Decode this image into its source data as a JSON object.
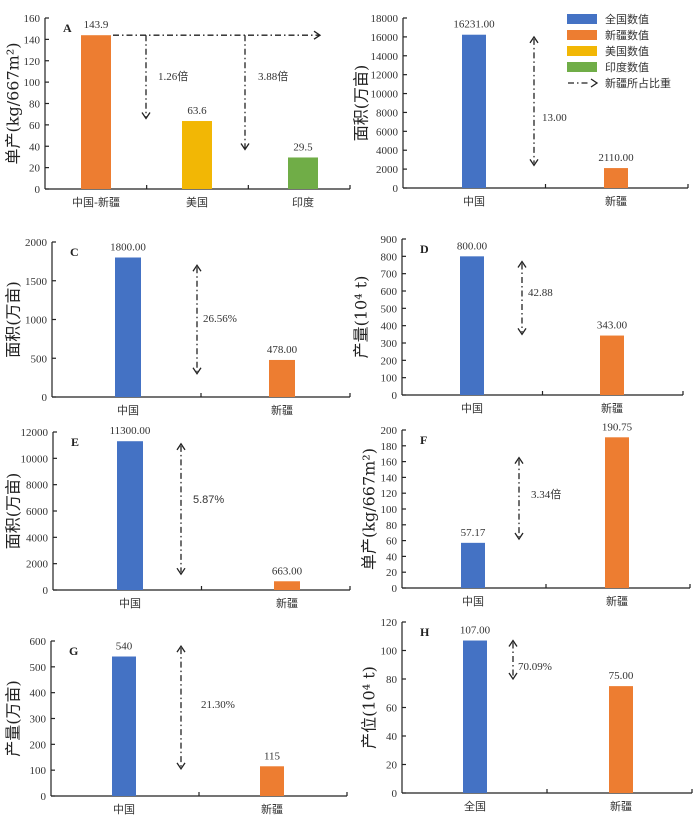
{
  "colors": {
    "national": "#4472C4",
    "xinjiang": "#ED7D31",
    "usa": "#F2B705",
    "india": "#70AD47"
  },
  "legend": {
    "items": [
      {
        "label": "全国数值",
        "color_key": "national",
        "kind": "patch"
      },
      {
        "label": "新疆数值",
        "color_key": "xinjiang",
        "kind": "patch"
      },
      {
        "label": "美国数值",
        "color_key": "usa",
        "kind": "patch"
      },
      {
        "label": "印度数值",
        "color_key": "india",
        "kind": "patch"
      },
      {
        "label": "新疆所占比重",
        "kind": "dash-dot-arrow"
      }
    ]
  },
  "chart_data": [
    {
      "id": "A",
      "type": "bar",
      "panel_label": "A",
      "ylabel": "单产(kg/667m²)",
      "ylim": [
        0,
        160
      ],
      "yticks": [
        0,
        20,
        40,
        60,
        80,
        100,
        120,
        140,
        160
      ],
      "categories": [
        "中国-新疆",
        "美国",
        "印度"
      ],
      "values": [
        143.9,
        63.6,
        29.5
      ],
      "value_labels": [
        "143.9",
        "63.6",
        "29.5"
      ],
      "bar_colors": [
        "xinjiang",
        "usa",
        "india"
      ],
      "annotations": [
        {
          "text": "1.26倍",
          "from": 143.9,
          "to": 63.6
        },
        {
          "text": "3.88倍",
          "from": 143.9,
          "to": 29.5
        }
      ]
    },
    {
      "id": "B",
      "type": "bar",
      "panel_label": "",
      "ylabel": "面积(万亩)",
      "ylim": [
        0,
        18000
      ],
      "yticks": [
        0,
        2000,
        4000,
        6000,
        8000,
        10000,
        12000,
        14000,
        16000,
        18000
      ],
      "categories": [
        "中国",
        "新疆"
      ],
      "values": [
        16231.0,
        2110.0
      ],
      "value_labels": [
        "16231.00",
        "2110.00"
      ],
      "bar_colors": [
        "national",
        "xinjiang"
      ],
      "annotations": [
        {
          "text": "13.00",
          "from": 16231.0,
          "to": 2110.0
        }
      ]
    },
    {
      "id": "C",
      "type": "bar",
      "panel_label": "C",
      "ylabel": "面积(万亩)",
      "ylim": [
        0,
        2000
      ],
      "yticks": [
        0,
        500,
        1000,
        1500,
        2000
      ],
      "categories": [
        "中国",
        "新疆"
      ],
      "values": [
        1800.0,
        478.0
      ],
      "value_labels": [
        "1800.00",
        "478.00"
      ],
      "bar_colors": [
        "national",
        "xinjiang"
      ],
      "annotations": [
        {
          "text": "26.56%",
          "from": 1800.0,
          "to": 478.0
        }
      ]
    },
    {
      "id": "D",
      "type": "bar",
      "panel_label": "D",
      "ylabel": "产量(10⁴ t)",
      "ylim": [
        0,
        900
      ],
      "yticks": [
        0,
        100,
        200,
        300,
        400,
        500,
        600,
        700,
        800,
        900
      ],
      "categories": [
        "中国",
        "新疆"
      ],
      "values": [
        800.0,
        343.0
      ],
      "value_labels": [
        "800.00",
        "343.00"
      ],
      "bar_colors": [
        "national",
        "xinjiang"
      ],
      "annotations": [
        {
          "text": "42.88",
          "from": 800.0,
          "to": 343.0
        }
      ]
    },
    {
      "id": "E",
      "type": "bar",
      "panel_label": "E",
      "ylabel": "面积(万亩)",
      "ylim": [
        0,
        12000
      ],
      "yticks": [
        0,
        2000,
        4000,
        6000,
        8000,
        10000,
        12000
      ],
      "categories": [
        "中国",
        "新疆"
      ],
      "values": [
        11300.0,
        663.0
      ],
      "value_labels": [
        "11300.00",
        "663.00"
      ],
      "bar_colors": [
        "national",
        "xinjiang"
      ],
      "annotations": [
        {
          "text": "5.87%",
          "from": 11300.0,
          "to": 663.0
        }
      ]
    },
    {
      "id": "F",
      "type": "bar",
      "panel_label": "F",
      "ylabel": "单产(kg/667m²)",
      "ylim": [
        0,
        200
      ],
      "yticks": [
        0,
        20,
        40,
        60,
        80,
        100,
        120,
        140,
        160,
        180,
        200
      ],
      "categories": [
        "中国",
        "新疆"
      ],
      "values": [
        57.17,
        190.75
      ],
      "value_labels": [
        "57.17",
        "190.75"
      ],
      "bar_colors": [
        "national",
        "xinjiang"
      ],
      "annotations": [
        {
          "text": "3.34倍",
          "from": 160,
          "to": 60
        }
      ]
    },
    {
      "id": "G",
      "type": "bar",
      "panel_label": "G",
      "ylabel": "产量(万亩)",
      "ylim": [
        0,
        600
      ],
      "yticks": [
        0,
        100,
        200,
        300,
        400,
        500,
        600
      ],
      "categories": [
        "中国",
        "新疆"
      ],
      "values": [
        540,
        115
      ],
      "value_labels": [
        "540",
        "115"
      ],
      "bar_colors": [
        "national",
        "xinjiang"
      ],
      "annotations": [
        {
          "text": "21.30%",
          "from": 580,
          "to": 105
        }
      ]
    },
    {
      "id": "H",
      "type": "bar",
      "panel_label": "H",
      "ylabel": "产位(10⁴ t)",
      "ylim": [
        0,
        120
      ],
      "yticks": [
        0,
        20,
        40,
        60,
        80,
        100,
        120
      ],
      "categories": [
        "全国",
        "新疆"
      ],
      "values": [
        107.0,
        75.0
      ],
      "value_labels": [
        "107.00",
        "75.00"
      ],
      "bar_colors": [
        "national",
        "xinjiang"
      ],
      "annotations": [
        {
          "text": "70.09%",
          "from": 107.0,
          "to": 75.0
        }
      ]
    }
  ]
}
